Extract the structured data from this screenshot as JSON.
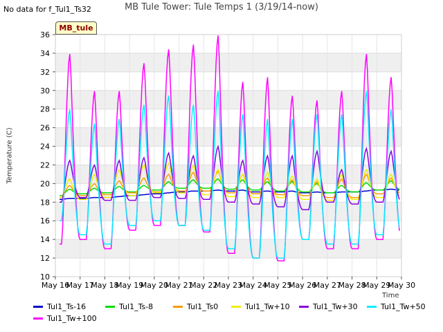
{
  "header": {
    "title": "MB Tule Tower: Tule Temps 1 (3/19/14-now)",
    "no_data_note": "No data for f_Tul1_Ts32",
    "badge": "MB_tule"
  },
  "chart_data": {
    "type": "line",
    "title": "MB Tule Tower: Tule Temps 1 (3/19/14-now)",
    "xlabel": "Time",
    "ylabel": "Temperature (C)",
    "xlim": [
      16,
      30
    ],
    "ylim": [
      10,
      36
    ],
    "yticks": [
      10,
      12,
      14,
      16,
      18,
      20,
      22,
      24,
      26,
      28,
      30,
      32,
      34,
      36
    ],
    "xticks": [
      {
        "value": 16,
        "label": "May 16"
      },
      {
        "value": 17,
        "label": "May 17"
      },
      {
        "value": 18,
        "label": "May 18"
      },
      {
        "value": 19,
        "label": "May 19"
      },
      {
        "value": 20,
        "label": "May 20"
      },
      {
        "value": 21,
        "label": "May 21"
      },
      {
        "value": 22,
        "label": "May 22"
      },
      {
        "value": 23,
        "label": "May 23"
      },
      {
        "value": 24,
        "label": "May 24"
      },
      {
        "value": 25,
        "label": "May 25"
      },
      {
        "value": 26,
        "label": "May 26"
      },
      {
        "value": 27,
        "label": "May 27"
      },
      {
        "value": 28,
        "label": "May 28"
      },
      {
        "value": 29,
        "label": "May 29"
      },
      {
        "value": 30,
        "label": "May 30"
      }
    ],
    "days": [
      16,
      17,
      18,
      19,
      20,
      21,
      22,
      23,
      24,
      25,
      26,
      27,
      28,
      29
    ],
    "series": [
      {
        "name": "Tul1_Ts-16",
        "color": "#0000cc",
        "max": [
          18.4,
          18.5,
          18.6,
          18.8,
          19.0,
          19.2,
          19.3,
          19.3,
          19.2,
          19.2,
          19.1,
          19.1,
          19.2,
          19.4
        ],
        "min": [
          18.3,
          18.4,
          18.5,
          18.7,
          18.9,
          19.1,
          19.2,
          19.2,
          19.1,
          19.1,
          19.0,
          19.0,
          19.1,
          19.3
        ]
      },
      {
        "name": "Tul1_Ts-8",
        "color": "#00dd00",
        "max": [
          19.4,
          19.5,
          19.7,
          19.8,
          20.2,
          20.4,
          20.5,
          20.4,
          20.2,
          20.2,
          20.0,
          19.8,
          20.1,
          20.3
        ],
        "min": [
          18.7,
          18.9,
          19.0,
          19.1,
          19.3,
          19.5,
          19.5,
          19.4,
          19.3,
          19.2,
          19.1,
          19.0,
          19.1,
          19.3
        ]
      },
      {
        "name": "Tul1_Ts0",
        "color": "#ff9900",
        "max": [
          19.8,
          20.0,
          20.3,
          20.6,
          21.0,
          21.2,
          21.3,
          21.0,
          20.6,
          20.4,
          20.2,
          20.5,
          21.0,
          20.6
        ],
        "min": [
          18.5,
          18.7,
          18.8,
          19.0,
          19.1,
          19.2,
          19.2,
          19.0,
          18.9,
          18.8,
          18.7,
          18.5,
          18.5,
          18.9
        ]
      },
      {
        "name": "Tul1_Tw+10",
        "color": "#eeee00",
        "max": [
          20.5,
          21.0,
          21.5,
          22.0,
          22.2,
          22.0,
          21.5,
          21.0,
          21.2,
          20.8,
          20.5,
          21.0,
          21.5,
          21.0
        ],
        "min": [
          18.5,
          18.3,
          18.5,
          18.7,
          19.0,
          19.0,
          18.8,
          18.6,
          18.5,
          18.5,
          18.3,
          18.2,
          18.3,
          18.5
        ]
      },
      {
        "name": "Tul1_Tw+30",
        "color": "#8800dd",
        "max": [
          22.5,
          22.0,
          22.5,
          22.8,
          23.3,
          23.0,
          24.0,
          22.5,
          23.0,
          23.0,
          23.5,
          21.5,
          23.8,
          23.5
        ],
        "min": [
          18.0,
          18.5,
          18.2,
          18.2,
          18.5,
          18.4,
          18.3,
          18.0,
          17.8,
          17.5,
          17.2,
          18.0,
          17.8,
          18.0
        ]
      },
      {
        "name": "Tul1_Tw+50",
        "color": "#00eeff",
        "max": [
          28.0,
          26.5,
          27.0,
          28.5,
          29.5,
          28.5,
          30.0,
          27.5,
          27.0,
          27.0,
          27.5,
          27.5,
          30.0,
          28.0
        ],
        "min": [
          16.0,
          14.5,
          13.5,
          15.5,
          16.0,
          15.5,
          15.0,
          13.0,
          12.0,
          12.0,
          14.0,
          13.5,
          13.5,
          14.5
        ]
      },
      {
        "name": "Tul1_Tw+100",
        "color": "#ff00ff",
        "max": [
          34.0,
          30.0,
          30.0,
          33.0,
          34.5,
          35.0,
          36.0,
          31.0,
          31.5,
          29.5,
          29.0,
          30.0,
          34.0,
          31.5
        ],
        "min": [
          13.5,
          14.0,
          13.0,
          15.0,
          15.5,
          15.5,
          14.8,
          12.5,
          12.0,
          11.7,
          14.0,
          13.0,
          13.0,
          14.0
        ]
      }
    ]
  }
}
